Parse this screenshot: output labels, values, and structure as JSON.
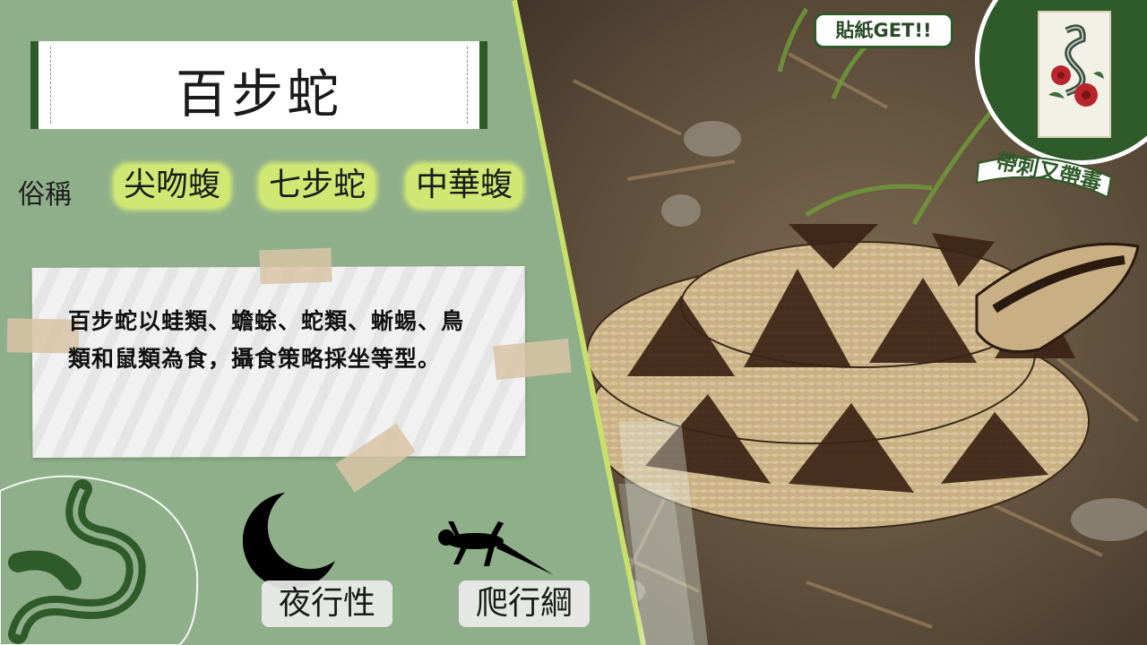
{
  "title": "百步蛇",
  "alias": {
    "label": "俗稱",
    "names": [
      "尖吻蝮",
      "七步蛇",
      "中華蝮"
    ]
  },
  "description": "百步蛇以蛙類、蟾蜍、蛇類、蜥蜴、鳥類和鼠類為食，攝食策略採坐等型。",
  "badges": {
    "nocturnal": "夜行性",
    "reptile": "爬行綱"
  },
  "sticker": {
    "get_label": "貼紙GET!!",
    "ribbon_label": "帶刺又帶毒"
  },
  "icons": {
    "moon": "crescent-moon-icon",
    "lizard": "lizard-silhouette-icon",
    "snake": "snake-outline-icon"
  },
  "colors": {
    "panel_green": "#8fae8a",
    "dark_green": "#2f5a2a",
    "highlight": "#d4ec72",
    "accent_lime": "#c8e06a"
  }
}
